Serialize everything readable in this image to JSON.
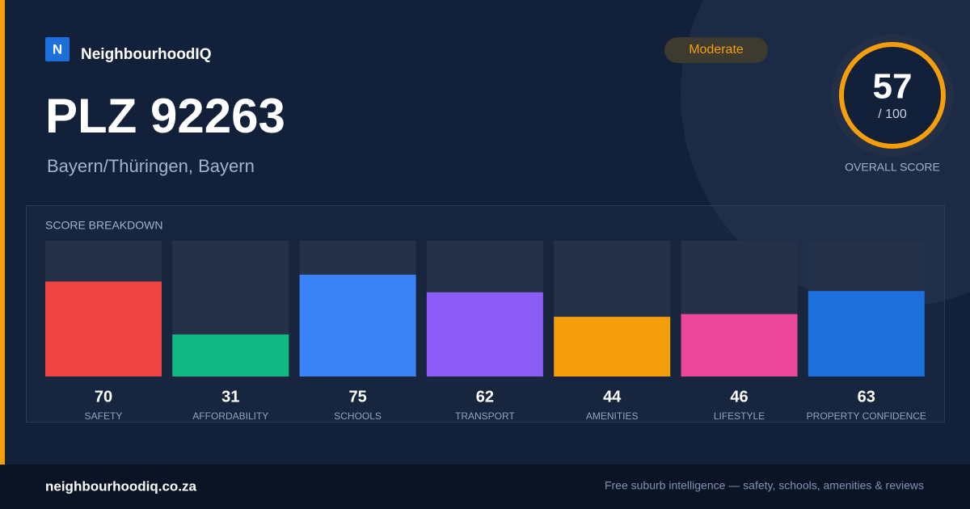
{
  "brand": "NeighbourhoodIQ",
  "logo_letter": "N",
  "title": "PLZ 92263",
  "subtitle": "Bayern/Thüringen, Bayern",
  "badge": "Moderate",
  "score": {
    "value": 57,
    "max_label": "/ 100",
    "label": "OVERALL SCORE"
  },
  "chart_data": {
    "type": "bar",
    "title": "SCORE BREAKDOWN",
    "categories": [
      "SAFETY",
      "AFFORDABILITY",
      "SCHOOLS",
      "TRANSPORT",
      "AMENITIES",
      "LIFESTYLE",
      "PROPERTY CONFIDENCE"
    ],
    "values": [
      70,
      31,
      75,
      62,
      44,
      46,
      63
    ],
    "colors": [
      "#ef4444",
      "#10b981",
      "#3b82f6",
      "#8b5cf6",
      "#f59e0b",
      "#ec4899",
      "#1d6fdb"
    ],
    "ylim": [
      0,
      100
    ]
  },
  "footer": {
    "site": "neighbourhoodiq.co.za",
    "tagline": "Free suburb intelligence — safety, schools, amenities & reviews"
  }
}
